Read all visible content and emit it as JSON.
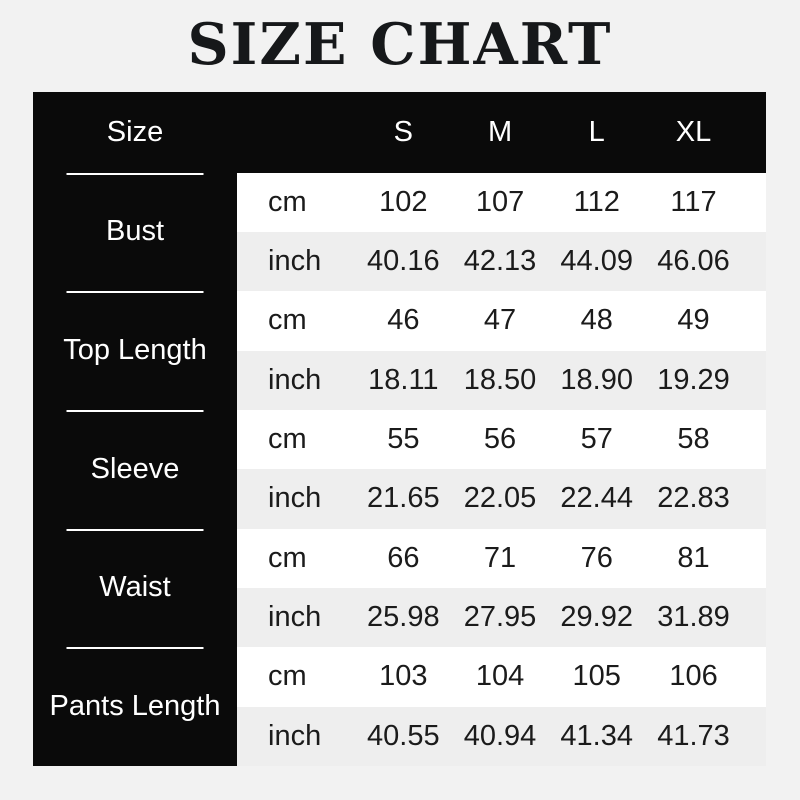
{
  "page": {
    "title": "SIZE CHART",
    "background": "#f2f2f2"
  },
  "table": {
    "header": {
      "size_label": "Size",
      "columns": [
        "S",
        "M",
        "L",
        "XL"
      ]
    },
    "unit_labels": {
      "cm": "cm",
      "inch": "inch"
    },
    "rows": [
      {
        "label": "Bust",
        "cm": [
          "102",
          "107",
          "112",
          "117"
        ],
        "inch": [
          "40.16",
          "42.13",
          "44.09",
          "46.06"
        ]
      },
      {
        "label": "Top Length",
        "cm": [
          "46",
          "47",
          "48",
          "49"
        ],
        "inch": [
          "18.11",
          "18.50",
          "18.90",
          "19.29"
        ]
      },
      {
        "label": "Sleeve",
        "cm": [
          "55",
          "56",
          "57",
          "58"
        ],
        "inch": [
          "21.65",
          "22.05",
          "22.44",
          "22.83"
        ]
      },
      {
        "label": "Waist",
        "cm": [
          "66",
          "71",
          "76",
          "81"
        ],
        "inch": [
          "25.98",
          "27.95",
          "29.92",
          "31.89"
        ]
      },
      {
        "label": "Pants Length",
        "cm": [
          "103",
          "104",
          "105",
          "106"
        ],
        "inch": [
          "40.55",
          "40.94",
          "41.34",
          "41.73"
        ]
      }
    ],
    "colors": {
      "header_bg": "#0a0a0a",
      "row_white": "#ffffff",
      "row_gray": "#eeeeee",
      "divider": "#ffffff",
      "text_dark": "#1b1b1b",
      "text_light": "#ffffff",
      "page_bg": "#f2f2f2"
    }
  },
  "chart_data": {
    "type": "table",
    "title": "SIZE CHART",
    "columns": [
      "S",
      "M",
      "L",
      "XL"
    ],
    "units": [
      "cm",
      "inch"
    ],
    "measurements": [
      {
        "label": "Bust",
        "cm": [
          102,
          107,
          112,
          117
        ],
        "inch": [
          40.16,
          42.13,
          44.09,
          46.06
        ]
      },
      {
        "label": "Top Length",
        "cm": [
          46,
          47,
          48,
          49
        ],
        "inch": [
          18.11,
          18.5,
          18.9,
          19.29
        ]
      },
      {
        "label": "Sleeve",
        "cm": [
          55,
          56,
          57,
          58
        ],
        "inch": [
          21.65,
          22.05,
          22.44,
          22.83
        ]
      },
      {
        "label": "Waist",
        "cm": [
          66,
          71,
          76,
          81
        ],
        "inch": [
          25.98,
          27.95,
          29.92,
          31.89
        ]
      },
      {
        "label": "Pants Length",
        "cm": [
          103,
          104,
          105,
          106
        ],
        "inch": [
          40.55,
          40.94,
          41.34,
          41.73
        ]
      }
    ]
  }
}
